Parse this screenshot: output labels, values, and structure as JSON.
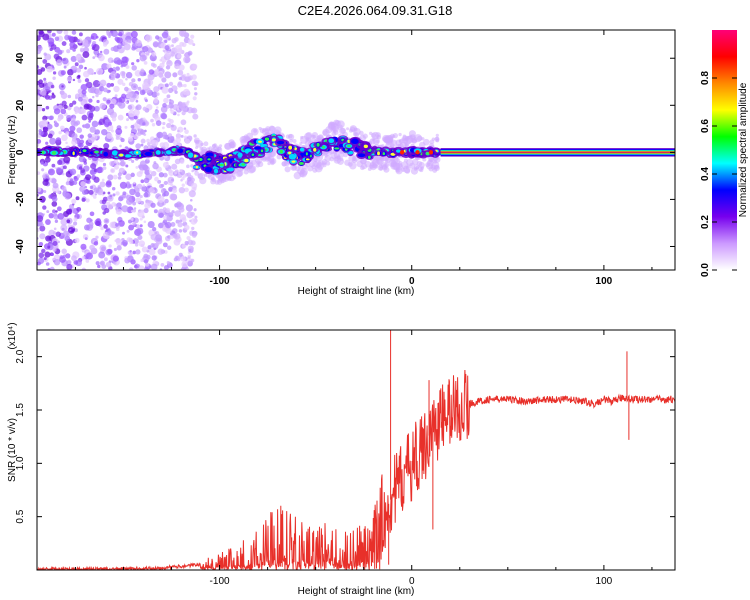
{
  "title": "C2E4.2026.064.09.31.G18",
  "chart_data": [
    {
      "type": "heatmap",
      "xlabel": "Height of straight line (km)",
      "ylabel": "Frequency (Hz)",
      "xlim": [
        -195,
        137
      ],
      "ylim": [
        -50,
        52
      ],
      "xticks": [
        -100,
        0,
        100
      ],
      "xtick_labels": [
        "-100",
        "0",
        "100"
      ],
      "yticks": [
        -40,
        -20,
        0,
        20,
        40
      ],
      "ytick_labels": [
        "-40",
        "-20",
        "0",
        "20",
        "40"
      ],
      "grid": false,
      "colorbar": {
        "label": "Normalized spectral amplitude",
        "range": [
          0,
          1
        ],
        "ticks": [
          0.0,
          0.2,
          0.4,
          0.6,
          0.8
        ],
        "tick_labels": [
          "0.0",
          "0.2",
          "0.4",
          "0.6",
          "0.8"
        ],
        "colors": [
          "#ffffff",
          "#cc99ff",
          "#7700ee",
          "#0000ff",
          "#00ffff",
          "#00ff00",
          "#ffff00",
          "#ff8800",
          "#ff0000",
          "#ff0077"
        ]
      },
      "line_segment": {
        "x": [
          15,
          137
        ],
        "frequency_hz": 0,
        "band_hz": [
          -2,
          2
        ],
        "color": "#dd2255"
      },
      "dense_trace": [
        {
          "x": -190,
          "y": 0.5
        },
        {
          "x": -170,
          "y": 0
        },
        {
          "x": -150,
          "y": -1
        },
        {
          "x": -130,
          "y": 0
        },
        {
          "x": -118,
          "y": 1
        },
        {
          "x": -110,
          "y": -4
        },
        {
          "x": -100,
          "y": -5
        },
        {
          "x": -90,
          "y": -3
        },
        {
          "x": -80,
          "y": 2
        },
        {
          "x": -70,
          "y": 4
        },
        {
          "x": -60,
          "y": -2
        },
        {
          "x": -50,
          "y": 0
        },
        {
          "x": -40,
          "y": 5
        },
        {
          "x": -30,
          "y": 2
        },
        {
          "x": -20,
          "y": 0
        },
        {
          "x": -10,
          "y": 0
        },
        {
          "x": 0,
          "y": 0
        },
        {
          "x": 10,
          "y": 0
        }
      ],
      "scatter_band": {
        "x": [
          -195,
          -112
        ],
        "y": [
          -50,
          52
        ]
      }
    },
    {
      "type": "line",
      "xlabel": "Height of straight line (km)",
      "ylabel": "SNR (10 * v/v)",
      "multiplier": "(x10⁴)",
      "xlim": [
        -195,
        137
      ],
      "ylim": [
        0,
        2.25
      ],
      "xticks": [
        -100,
        0,
        100
      ],
      "xtick_labels": [
        "-100",
        "0",
        "100"
      ],
      "yticks": [
        0.5,
        1.0,
        1.5,
        2.0
      ],
      "ytick_labels": [
        "0.5",
        "1.0",
        "1.5",
        "2.0"
      ],
      "grid": false,
      "series": [
        {
          "color": "#e8302a",
          "x": [
            -195,
            -150,
            -130,
            -110,
            -100,
            -90,
            -80,
            -70,
            -60,
            -50,
            -40,
            -30,
            -20,
            -15,
            -10,
            -5,
            0,
            5,
            10,
            15,
            20,
            30,
            40,
            50,
            60,
            70,
            80,
            90,
            95,
            100,
            105,
            110,
            115,
            120,
            130,
            137
          ],
          "y": [
            0.01,
            0.01,
            0.02,
            0.05,
            0.08,
            0.12,
            0.18,
            0.3,
            0.25,
            0.2,
            0.22,
            0.18,
            0.25,
            0.5,
            0.7,
            0.85,
            1.0,
            1.1,
            1.3,
            1.4,
            1.5,
            1.56,
            1.6,
            1.6,
            1.58,
            1.6,
            1.6,
            1.58,
            1.55,
            1.6,
            1.58,
            1.62,
            1.6,
            1.6,
            1.6,
            1.6
          ]
        }
      ],
      "spikes": [
        {
          "x": -11,
          "y": 2.25
        },
        {
          "x": -12,
          "y": 0.05
        },
        {
          "x": 9,
          "y": 1.78
        },
        {
          "x": 11,
          "y": 0.38
        },
        {
          "x": 112,
          "y": 2.05
        },
        {
          "x": 113,
          "y": 1.22
        }
      ]
    }
  ]
}
